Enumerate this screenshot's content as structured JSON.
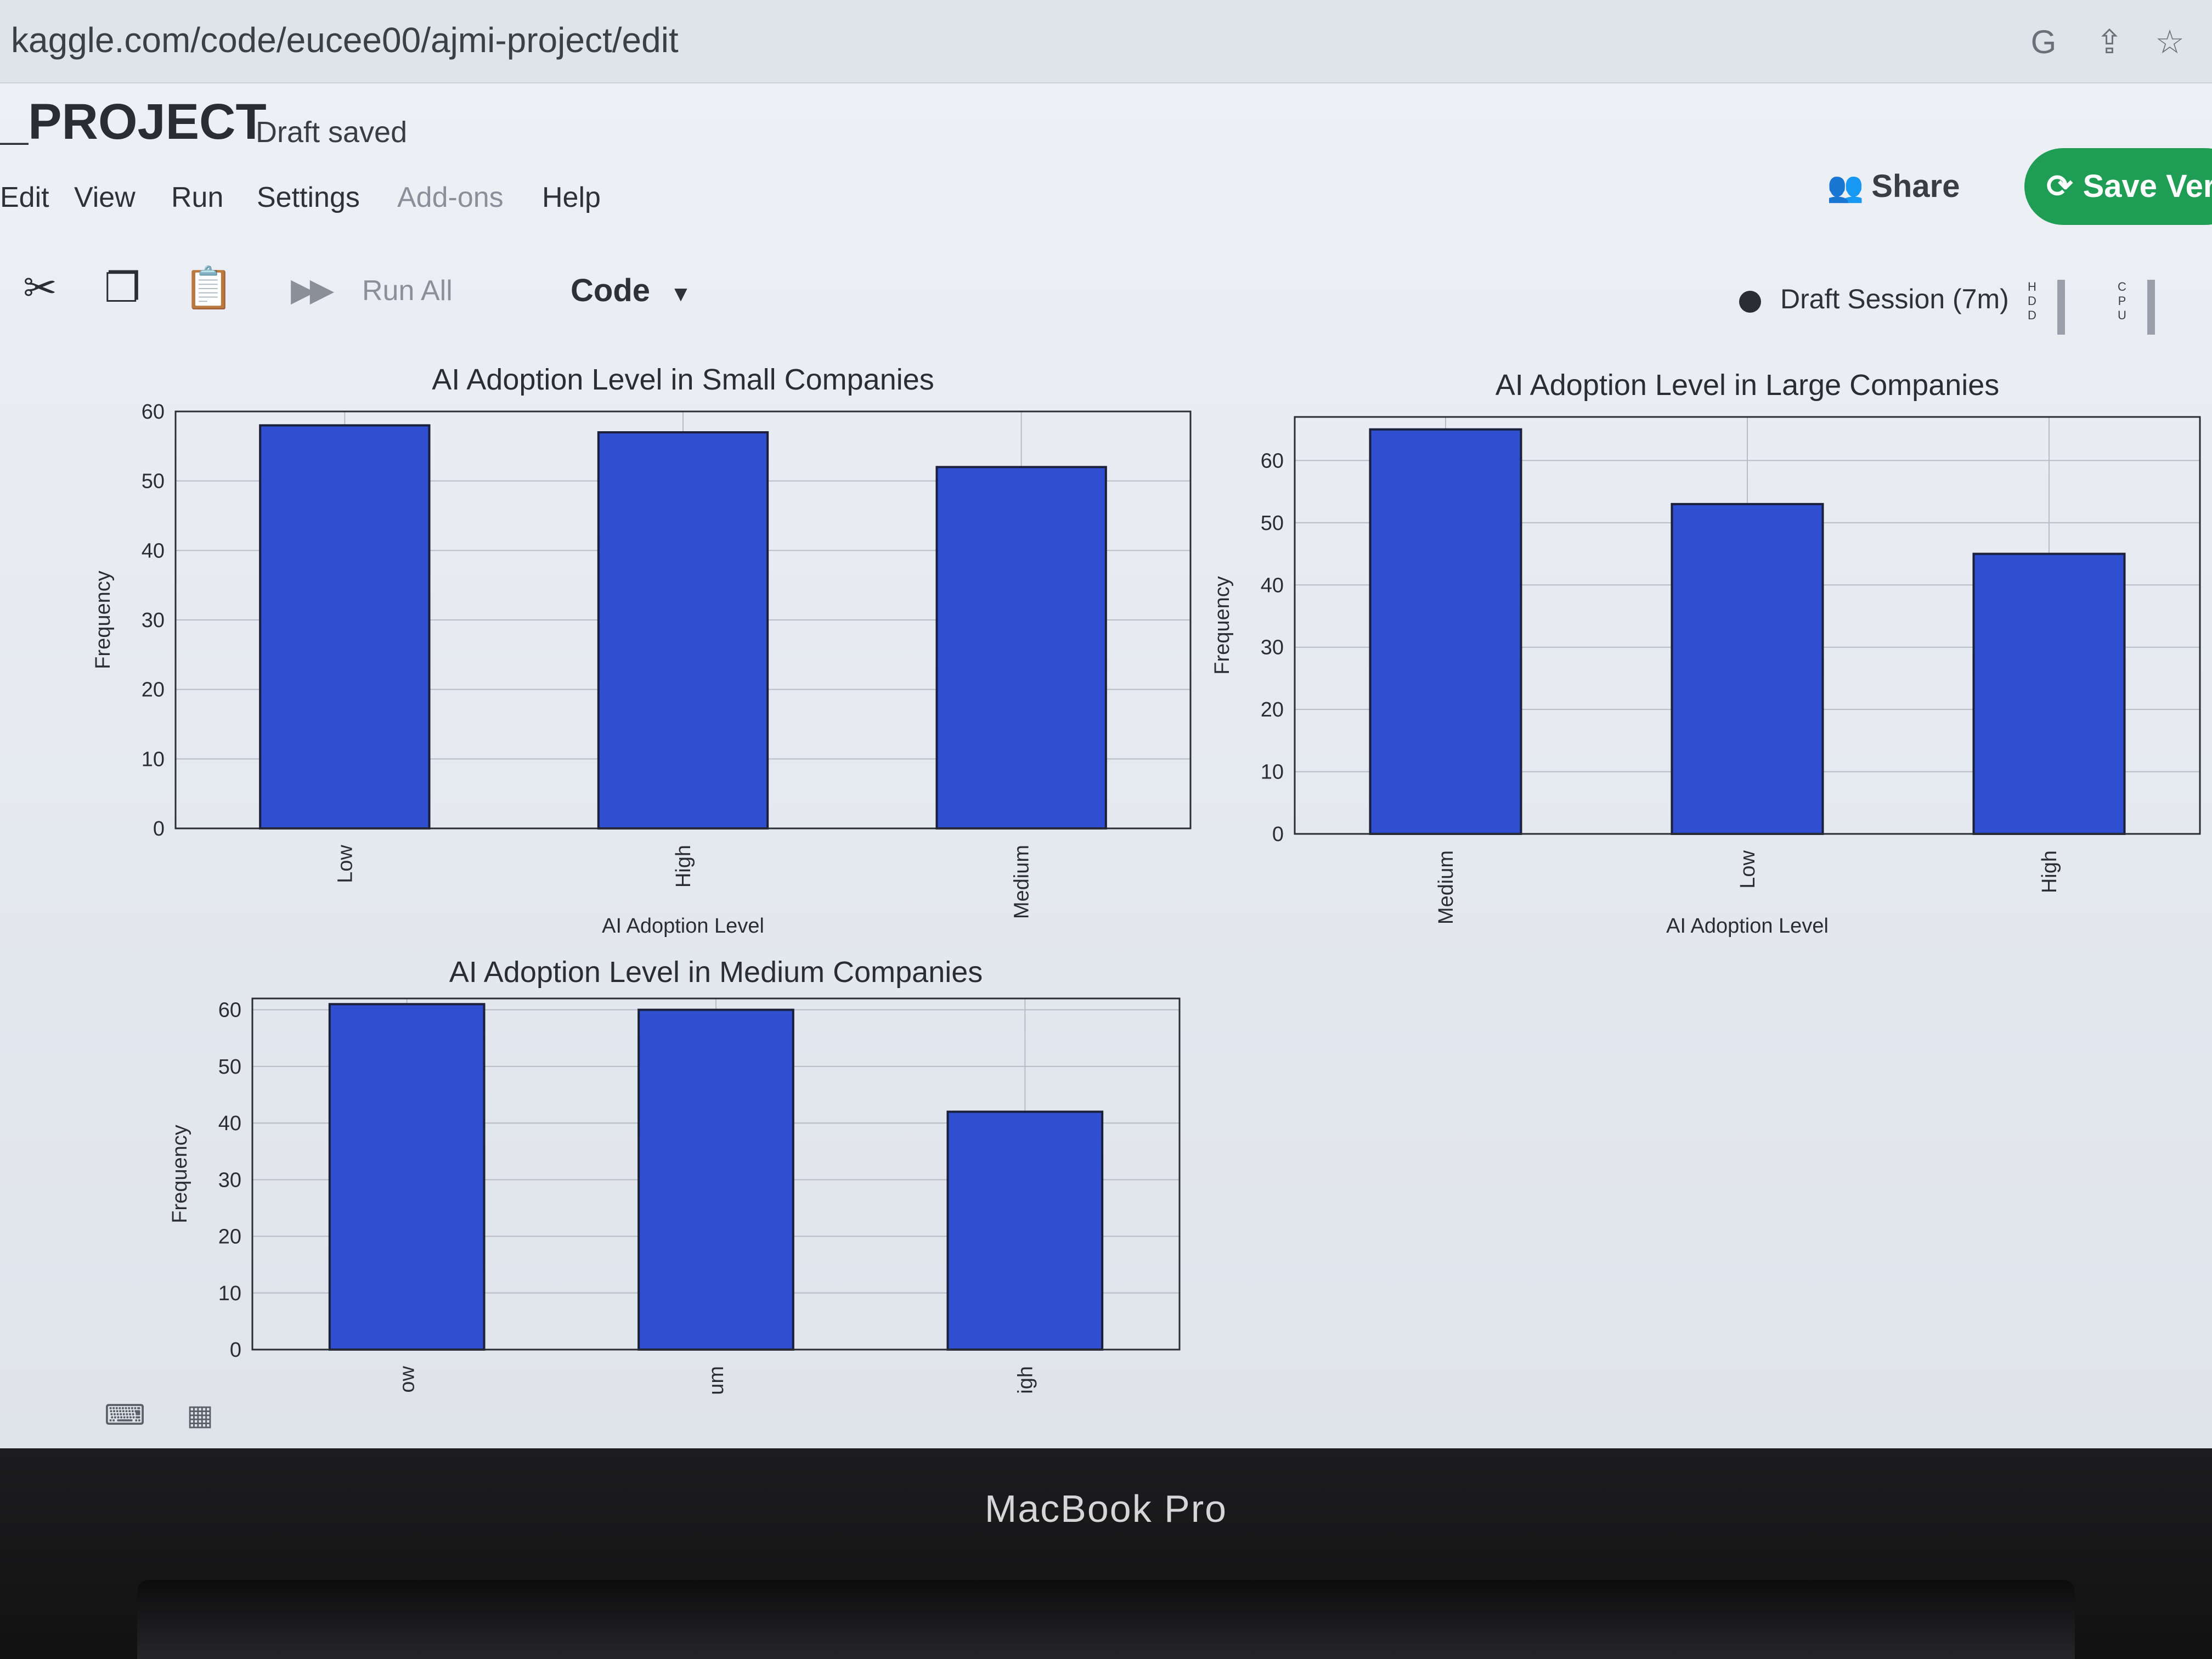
{
  "browser": {
    "url": "kaggle.com/code/eucee00/ajmi-project/edit",
    "icons": [
      "google-icon",
      "share-icon",
      "star-icon"
    ]
  },
  "header": {
    "project_title": "_PROJECT",
    "draft_status": "Draft saved"
  },
  "menu": {
    "items": [
      "Edit",
      "View",
      "Run",
      "Settings",
      "Add-ons",
      "Help"
    ]
  },
  "actions": {
    "share_label": "Share",
    "save_version_label": "Save Ver",
    "accent_color": "#1f9d55"
  },
  "toolbar": {
    "icons": [
      "scissors-icon",
      "copy-icon",
      "paste-icon",
      "run-icon",
      "run-all-icon"
    ],
    "run_all_label": "Run All",
    "cell_type": "Code"
  },
  "session": {
    "status": "Draft Session (7m)",
    "resources": [
      "H\nD\nD",
      "C\nP\nU"
    ]
  },
  "chart_data": [
    {
      "type": "bar",
      "title": "AI Adoption Level in Small Companies",
      "xlabel": "AI Adoption Level",
      "ylabel": "Frequency",
      "categories": [
        "Low",
        "High",
        "Medium"
      ],
      "values": [
        58,
        57,
        52
      ],
      "ylim": [
        0,
        60
      ],
      "yticks": [
        0,
        10,
        20,
        30,
        40,
        50,
        60
      ],
      "bar_color": "#2f4fd0",
      "grid": true
    },
    {
      "type": "bar",
      "title": "AI Adoption Level in Large Companies",
      "xlabel": "AI Adoption Level",
      "ylabel": "Frequency",
      "categories": [
        "Medium",
        "Low",
        "High"
      ],
      "values": [
        65,
        53,
        45
      ],
      "ylim": [
        0,
        67
      ],
      "yticks": [
        0,
        10,
        20,
        30,
        40,
        50,
        60
      ],
      "bar_color": "#2f4fd0",
      "grid": true
    },
    {
      "type": "bar",
      "title": "AI Adoption Level in Medium Companies",
      "xlabel": "",
      "ylabel": "Frequency",
      "categories": [
        "ow",
        "um",
        "igh"
      ],
      "values": [
        61,
        60,
        42
      ],
      "ylim": [
        0,
        62
      ],
      "yticks": [
        0,
        10,
        20,
        30,
        40,
        50,
        60
      ],
      "bar_color": "#2f4fd0",
      "grid": true
    }
  ],
  "footer": {
    "icons": [
      "console-icon",
      "keyboard-icon"
    ]
  },
  "device": {
    "label": "MacBook Pro"
  }
}
